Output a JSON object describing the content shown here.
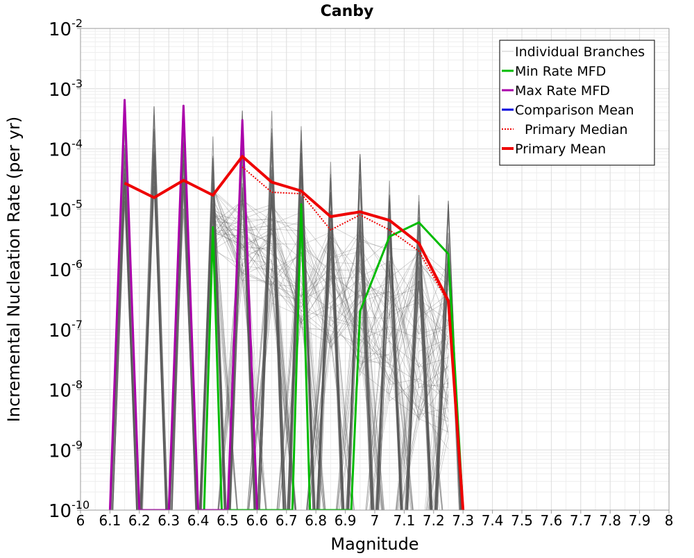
{
  "chart_data": {
    "type": "line",
    "title": "Canby",
    "xlabel": "Magnitude",
    "ylabel": "Incremental Nucleation Rate (per yr)",
    "xlim": [
      6,
      8
    ],
    "ylim_exponents": [
      -10,
      -2
    ],
    "y_scale": "log",
    "x_ticks": [
      "6",
      "6.1",
      "6.2",
      "6.3",
      "6.4",
      "6.5",
      "6.6",
      "6.7",
      "6.8",
      "6.9",
      "7",
      "7.1",
      "7.2",
      "7.3",
      "7.4",
      "7.5",
      "7.6",
      "7.7",
      "7.8",
      "7.9",
      "8"
    ],
    "y_tick_base": "10",
    "y_tick_exponents": [
      "-10",
      "-9",
      "-8",
      "-7",
      "-6",
      "-5",
      "-4",
      "-3",
      "-2"
    ],
    "grid": true,
    "legend_position": "top-right",
    "legend": [
      {
        "label": "Individual Branches",
        "color": "#c8c8c8",
        "style": "thin"
      },
      {
        "label": "Min Rate MFD",
        "color": "#00bb00",
        "style": "solid"
      },
      {
        "label": "Max Rate MFD",
        "color": "#aa00aa",
        "style": "solid"
      },
      {
        "label": "Comparison Mean",
        "color": "#0000dd",
        "style": "solid"
      },
      {
        "label": "Primary Median",
        "color": "#ee0000",
        "style": "dotted"
      },
      {
        "label": "Primary Mean",
        "color": "#ee0000",
        "style": "thick"
      }
    ],
    "branch_color": "#555555",
    "series": [
      {
        "name": "Min Rate MFD",
        "color": "#00bb00",
        "points": [
          [
            6.42,
            1e-10
          ],
          [
            6.45,
            5e-06
          ],
          [
            6.48,
            1e-10
          ],
          [
            6.72,
            1e-10
          ],
          [
            6.75,
            1.2e-05
          ],
          [
            6.78,
            1e-10
          ],
          [
            6.92,
            1e-10
          ],
          [
            6.95,
            2e-07
          ],
          [
            7.05,
            3.5e-06
          ],
          [
            7.15,
            6e-06
          ],
          [
            7.25,
            1.8e-06
          ],
          [
            7.3,
            1e-10
          ]
        ]
      },
      {
        "name": "Max Rate MFD",
        "color": "#aa00aa",
        "points": [
          [
            6.1,
            1e-10
          ],
          [
            6.15,
            0.00065
          ],
          [
            6.2,
            1e-10
          ],
          [
            6.3,
            1e-10
          ],
          [
            6.35,
            0.00052
          ],
          [
            6.4,
            1e-10
          ],
          [
            6.5,
            1e-10
          ],
          [
            6.55,
            0.0003
          ],
          [
            6.6,
            1e-10
          ]
        ]
      },
      {
        "name": "Primary Median",
        "color": "#ee0000",
        "points": [
          [
            6.55,
            5e-05
          ],
          [
            6.65,
            1.9e-05
          ],
          [
            6.75,
            1.8e-05
          ],
          [
            6.85,
            4.5e-06
          ],
          [
            6.95,
            8e-06
          ],
          [
            7.05,
            4.5e-06
          ],
          [
            7.15,
            2e-06
          ],
          [
            7.25,
            2.8e-07
          ],
          [
            7.3,
            1e-10
          ]
        ]
      },
      {
        "name": "Primary Mean",
        "color": "#ee0000",
        "points": [
          [
            6.15,
            2.7e-05
          ],
          [
            6.25,
            1.55e-05
          ],
          [
            6.35,
            3e-05
          ],
          [
            6.45,
            1.7e-05
          ],
          [
            6.55,
            7.5e-05
          ],
          [
            6.65,
            2.8e-05
          ],
          [
            6.75,
            2e-05
          ],
          [
            6.85,
            7.5e-06
          ],
          [
            6.95,
            9e-06
          ],
          [
            7.05,
            6.5e-06
          ],
          [
            7.15,
            2.7e-06
          ],
          [
            7.25,
            3e-07
          ],
          [
            7.3,
            1e-10
          ]
        ]
      }
    ],
    "branch_spikes": [
      [
        6.15,
        0.0004
      ],
      [
        6.25,
        0.00055
      ],
      [
        6.35,
        0.0004
      ],
      [
        6.45,
        0.00026
      ],
      [
        6.55,
        0.0007
      ],
      [
        6.65,
        0.0005
      ],
      [
        6.75,
        0.00028
      ],
      [
        6.85,
        0.00011
      ],
      [
        6.95,
        0.0001
      ],
      [
        7.05,
        3.5e-05
      ],
      [
        7.15,
        2.2e-05
      ],
      [
        7.25,
        1.4e-05
      ]
    ]
  }
}
